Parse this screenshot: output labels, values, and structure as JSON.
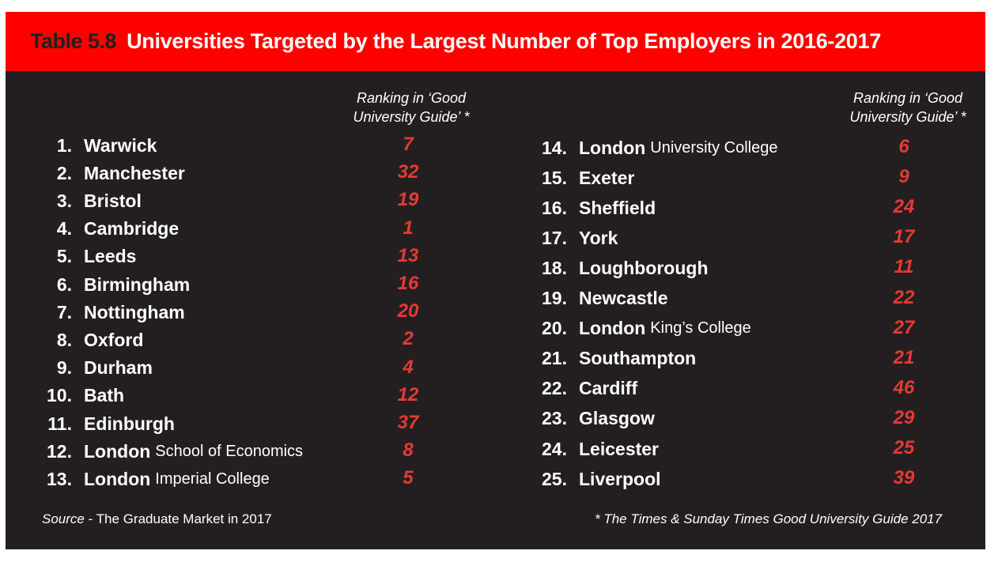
{
  "header": {
    "table_number": "Table 5.8",
    "title": "Universities Targeted by the Largest Number of Top Employers in 2016-2017",
    "colors": {
      "background": "#ff0000",
      "number": "#231f20",
      "title": "#ffffff"
    }
  },
  "panel": {
    "background": "#231f20",
    "score_color": "#e53935"
  },
  "column_header": {
    "line1": "Ranking in ‘Good",
    "line2": "University Guide’ *"
  },
  "left_column": [
    {
      "rank": "1.",
      "name": "Warwick",
      "sub": "",
      "guide_rank": "7"
    },
    {
      "rank": "2.",
      "name": "Manchester",
      "sub": "",
      "guide_rank": "32"
    },
    {
      "rank": "3.",
      "name": "Bristol",
      "sub": "",
      "guide_rank": "19"
    },
    {
      "rank": "4.",
      "name": "Cambridge",
      "sub": "",
      "guide_rank": "1"
    },
    {
      "rank": "5.",
      "name": "Leeds",
      "sub": "",
      "guide_rank": "13"
    },
    {
      "rank": "6.",
      "name": "Birmingham",
      "sub": "",
      "guide_rank": "16"
    },
    {
      "rank": "7.",
      "name": "Nottingham",
      "sub": "",
      "guide_rank": "20"
    },
    {
      "rank": "8.",
      "name": "Oxford",
      "sub": "",
      "guide_rank": "2"
    },
    {
      "rank": "9.",
      "name": "Durham",
      "sub": "",
      "guide_rank": "4"
    },
    {
      "rank": "10.",
      "name": "Bath",
      "sub": "",
      "guide_rank": "12"
    },
    {
      "rank": "11.",
      "name": "Edinburgh",
      "sub": "",
      "guide_rank": "37"
    },
    {
      "rank": "12.",
      "name": "London",
      "sub": "School of Economics",
      "guide_rank": "8"
    },
    {
      "rank": "13.",
      "name": "London",
      "sub": "Imperial College",
      "guide_rank": "5"
    }
  ],
  "right_column": [
    {
      "rank": "14.",
      "name": "London",
      "sub": "University College",
      "guide_rank": "6"
    },
    {
      "rank": "15.",
      "name": "Exeter",
      "sub": "",
      "guide_rank": "9"
    },
    {
      "rank": "16.",
      "name": "Sheffield",
      "sub": "",
      "guide_rank": "24"
    },
    {
      "rank": "17.",
      "name": "York",
      "sub": "",
      "guide_rank": "17"
    },
    {
      "rank": "18.",
      "name": "Loughborough",
      "sub": "",
      "guide_rank": "11"
    },
    {
      "rank": "19.",
      "name": "Newcastle",
      "sub": "",
      "guide_rank": "22"
    },
    {
      "rank": "20.",
      "name": "London",
      "sub": "King’s College",
      "guide_rank": "27"
    },
    {
      "rank": "21.",
      "name": "Southampton",
      "sub": "",
      "guide_rank": "21"
    },
    {
      "rank": "22.",
      "name": "Cardiff",
      "sub": "",
      "guide_rank": "46"
    },
    {
      "rank": "23.",
      "name": "Glasgow",
      "sub": "",
      "guide_rank": "29"
    },
    {
      "rank": "24.",
      "name": "Leicester",
      "sub": "",
      "guide_rank": "25"
    },
    {
      "rank": "25.",
      "name": "Liverpool",
      "sub": "",
      "guide_rank": "39"
    }
  ],
  "footer": {
    "source_label": "Source",
    "source_text": " - The Graduate Market in 2017",
    "note": "* The Times & Sunday Times Good University Guide 2017"
  }
}
